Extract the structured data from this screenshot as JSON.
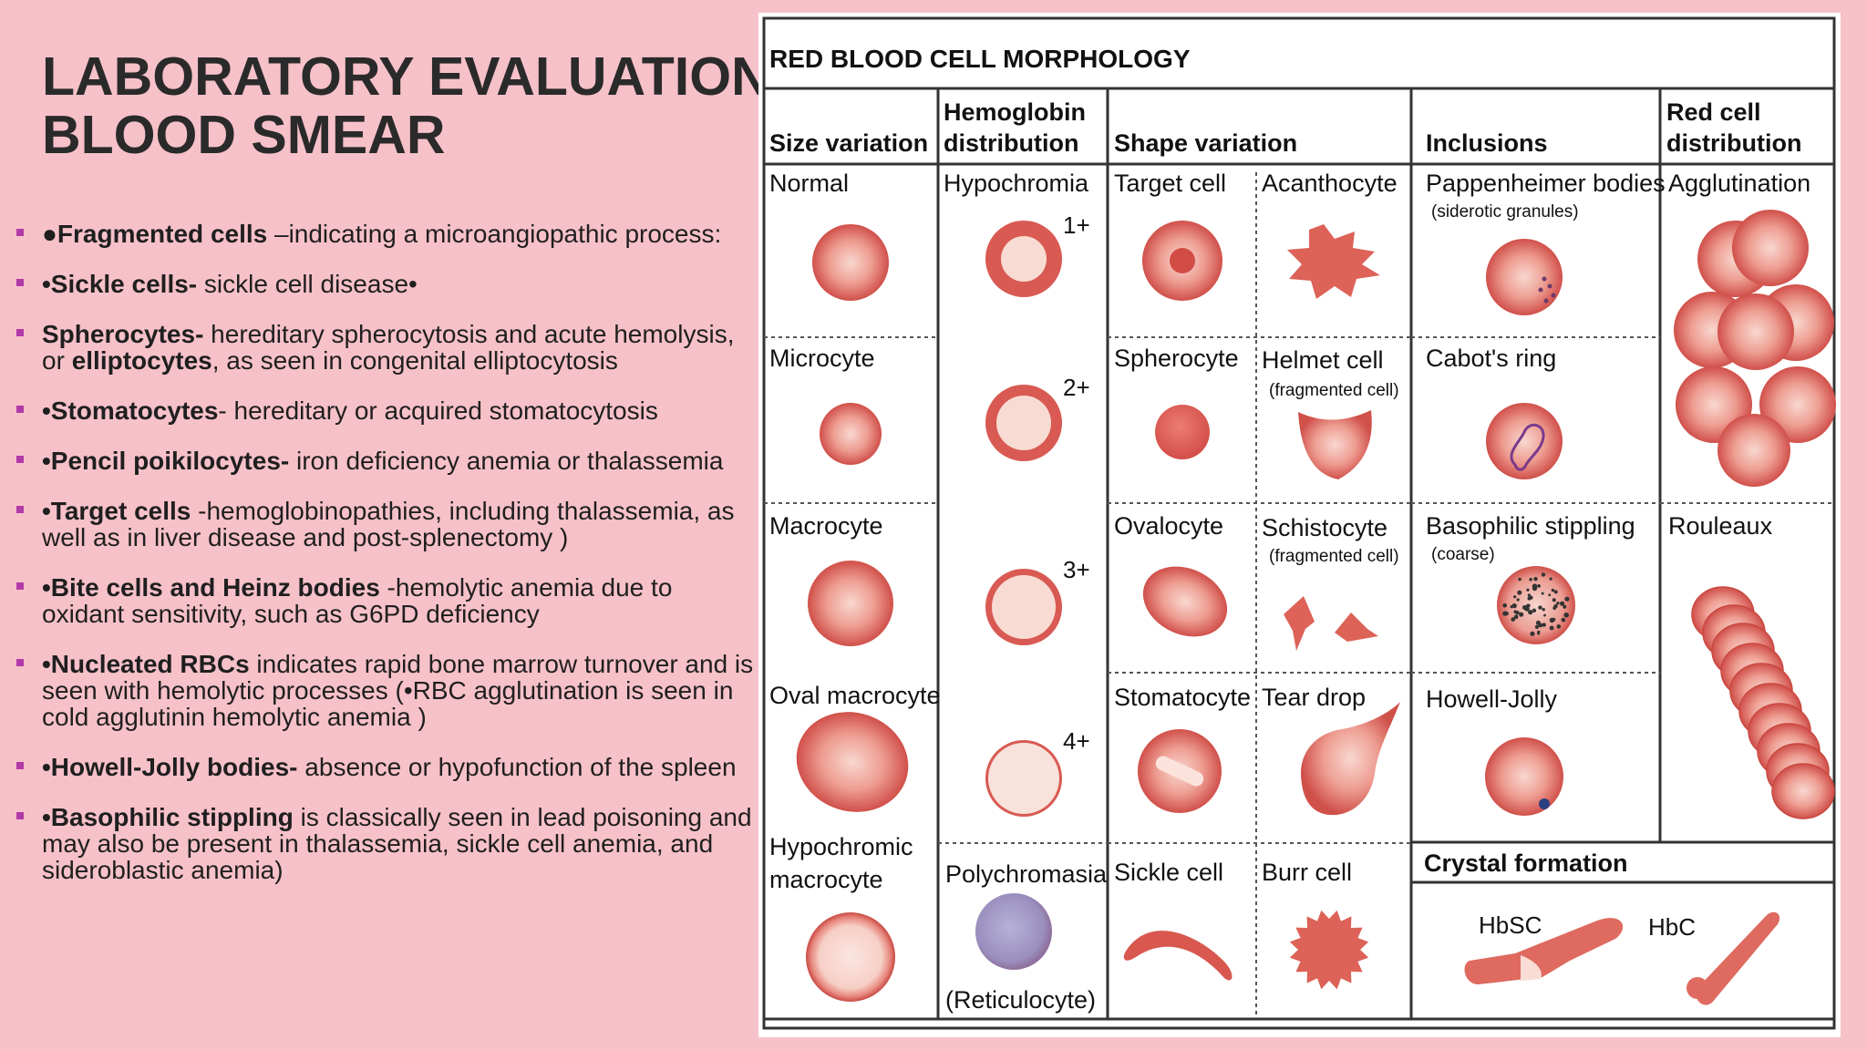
{
  "slide": {
    "title_line1": "LABORATORY EVALUATION",
    "title_line2": "BLOOD SMEAR",
    "bullets": [
      {
        "bold": "●Fragmented cells",
        "rest": " –indicating a microangiopathic process:"
      },
      {
        "bold": "•Sickle cells-",
        "rest": " sickle cell disease•"
      },
      {
        "bold": "Spherocytes-",
        "rest": " hereditary spherocytosis and acute hemolysis, or ",
        "bold2": "elliptocytes",
        "rest2": ", as seen in congenital elliptocytosis"
      },
      {
        "bold": "•Stomatocytes",
        "rest": "- hereditary or acquired stomatocytosis"
      },
      {
        "bold": "•Pencil poikilocytes-",
        "rest": " iron deficiency anemia or thalassemia"
      },
      {
        "bold": "•Target cells",
        "rest": " -hemoglobinopathies, including thalassemia, as well as in liver disease and post-splenectomy )"
      },
      {
        "bold": "•Bite cells and Heinz bodies",
        "rest": " -hemolytic anemia due to oxidant sensitivity, such as G6PD deficiency"
      },
      {
        "bold": "•Nucleated RBCs",
        "rest": " indicates rapid bone marrow turnover and is seen with hemolytic processes (•RBC agglutination is seen in cold agglutinin hemolytic anemia )"
      },
      {
        "bold": "•Howell-Jolly bodies-",
        "rest": " absence or hypofunction of the spleen"
      },
      {
        "bold": "•Basophilic stippling",
        "rest": "  is classically seen in lead poisoning and may also be present in thalassemia, sickle cell anemia, and sideroblastic anemia)"
      }
    ]
  },
  "figure": {
    "title": "RED BLOOD CELL MORPHOLOGY",
    "headers": {
      "size": "Size variation",
      "hb_1": "Hemoglobin",
      "hb_2": "distribution",
      "shape": "Shape variation",
      "inclusions": "Inclusions",
      "red_1": "Red cell",
      "red_2": "distribution"
    },
    "size_column": {
      "normal": "Normal",
      "microcyte": "Microcyte",
      "macrocyte": "Macrocyte",
      "oval_macrocyte": "Oval macrocyte",
      "hypochromic_1": "Hypochromic",
      "hypochromic_2": "macrocyte"
    },
    "hemoglobin_column": {
      "hypochromia": "Hypochromia",
      "grade_1": "1+",
      "grade_2": "2+",
      "grade_3": "3+",
      "grade_4": "4+",
      "polychromasia": "Polychromasia",
      "reticulocyte": "(Reticulocyte)"
    },
    "shape_column": {
      "target": "Target cell",
      "acanthocyte": "Acanthocyte",
      "spherocyte": "Spherocyte",
      "helmet": "Helmet cell",
      "helmet_note": "(fragmented cell)",
      "ovalocyte": "Ovalocyte",
      "schistocyte": "Schistocyte",
      "schistocyte_note": "(fragmented cell)",
      "stomatocyte": "Stomatocyte",
      "tear_drop": "Tear drop",
      "sickle": "Sickle cell",
      "burr": "Burr cell"
    },
    "inclusions_column": {
      "pappenheimer": "Pappenheimer bodies",
      "pappenheimer_note": "(siderotic granules)",
      "cabot": "Cabot's ring",
      "basophilic": "Basophilic stippling",
      "basophilic_note": "(coarse)",
      "howell_jolly": "Howell-Jolly"
    },
    "red_cell_column": {
      "agglutination": "Agglutination",
      "rouleaux": "Rouleaux"
    },
    "crystal": {
      "heading": "Crystal formation",
      "hbsc": "HbSC",
      "hbc": "HbC"
    },
    "colors": {
      "cell_center": "#f7d3cc",
      "cell_mid": "#ea8a80",
      "cell_edge": "#c9433f",
      "slide_bg": "#f7c1c9",
      "bullet_marker": "#b23aa8"
    }
  }
}
